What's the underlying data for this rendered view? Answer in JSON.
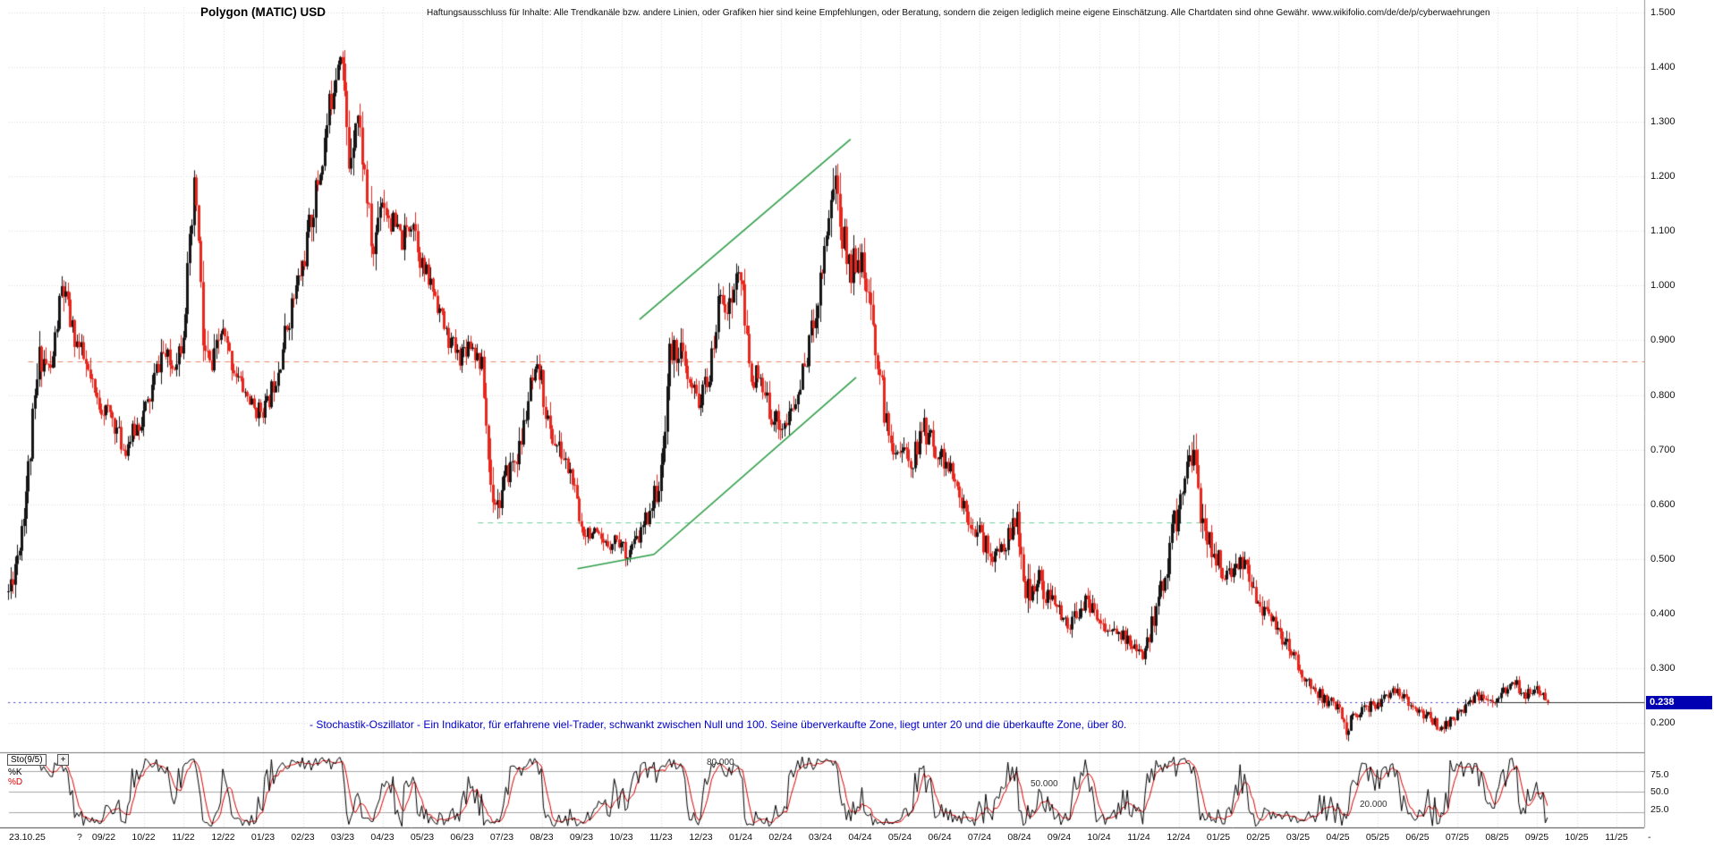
{
  "header": {
    "title": "Polygon (MATIC) USD",
    "disclaimer": "Haftungsausschluss für Inhalte: Alle Trendkanäle bzw. andere Linien, oder Grafiken hier sind keine Empfehlungen, oder Beratung, sondern die zeigen lediglich meine eigene Einschätzung. Alle Chartdaten sind ohne Gewähr.  www.wikifolio.com/de/de/p/cyberwaehrungen"
  },
  "annotations": {
    "stochastic_note": "- Stochastik-Oszillator - Ein Indikator, für erfahrene viel-Trader, schwankt zwischen Null und 100. Seine überverkaufte Zone, liegt unter 20 und die überkaufte Zone, über 80.",
    "note_color": "#0000cc"
  },
  "price_axis": {
    "current_price": "0.238",
    "badge_color": "#0000b2"
  },
  "time_axis": {
    "date_stamp": "23.10.25",
    "marker": "?",
    "suffix": "-"
  },
  "oscillator": {
    "indicator_label": "Sto(9/5)",
    "add_button": "+",
    "k_label": "%K",
    "d_label": "%D",
    "k_color": "#000000",
    "d_color": "#dd0000",
    "level_labels": {
      "upper": "80.000",
      "middle": "50.000",
      "lower": "20.000"
    },
    "right_ticks": [
      "75.0",
      "50.0",
      "25.0"
    ]
  },
  "chart_data": {
    "type": "candlestick",
    "title": "Polygon (MATIC) USD",
    "legend_position": "none",
    "grid": true,
    "x_axis": {
      "unit": "month",
      "labels": [
        "09/22",
        "10/22",
        "11/22",
        "12/22",
        "01/23",
        "02/23",
        "03/23",
        "04/23",
        "05/23",
        "06/23",
        "07/23",
        "08/23",
        "09/23",
        "10/23",
        "11/23",
        "12/23",
        "01/24",
        "02/24",
        "03/24",
        "04/24",
        "05/24",
        "06/24",
        "07/24",
        "08/24",
        "09/24",
        "10/24",
        "11/24",
        "12/24",
        "01/25",
        "02/25",
        "03/25",
        "04/25",
        "05/25",
        "06/25",
        "07/25",
        "08/25",
        "09/25",
        "10/25",
        "11/25"
      ],
      "start_month": -2.4,
      "end_month": 36.3,
      "right_edge_month": 38.7
    },
    "y_axis": {
      "ticks": [
        "1.500",
        "1.400",
        "1.300",
        "1.200",
        "1.100",
        "1.000",
        "0.900",
        "0.800",
        "0.700",
        "0.600",
        "0.500",
        "0.400",
        "0.300",
        "0.200"
      ],
      "gridlines": [
        0.2,
        0.3,
        0.4,
        0.5,
        0.6,
        0.7,
        0.8,
        0.9,
        1.0,
        1.1,
        1.2,
        1.3,
        1.4,
        1.5
      ],
      "range": [
        0.15,
        1.52
      ]
    },
    "last_price": 0.238,
    "colors": {
      "up": "#151515",
      "down": "#e8261d",
      "grid": "#dadada"
    },
    "seed": 11,
    "candles_per_month": 18,
    "price_path": [
      [
        -2.4,
        0.44,
        0.05
      ],
      [
        -2.15,
        0.52,
        0.06
      ],
      [
        -1.9,
        0.66,
        0.07
      ],
      [
        -1.6,
        0.88,
        0.07
      ],
      [
        -1.35,
        0.84,
        0.05
      ],
      [
        -1.05,
        1.0,
        0.06
      ],
      [
        -0.8,
        0.92,
        0.05
      ],
      [
        -0.5,
        0.86,
        0.05
      ],
      [
        -0.2,
        0.79,
        0.04
      ],
      [
        0.2,
        0.76,
        0.04
      ],
      [
        0.5,
        0.7,
        0.04
      ],
      [
        0.8,
        0.74,
        0.04
      ],
      [
        1.1,
        0.78,
        0.05
      ],
      [
        1.45,
        0.88,
        0.05
      ],
      [
        1.7,
        0.85,
        0.04
      ],
      [
        1.95,
        0.9,
        0.05
      ],
      [
        2.15,
        1.05,
        0.08
      ],
      [
        2.3,
        1.19,
        0.09
      ],
      [
        2.5,
        0.88,
        0.1
      ],
      [
        2.7,
        0.84,
        0.06
      ],
      [
        2.95,
        0.92,
        0.05
      ],
      [
        3.2,
        0.86,
        0.04
      ],
      [
        3.5,
        0.81,
        0.03
      ],
      [
        3.8,
        0.77,
        0.03
      ],
      [
        4.1,
        0.78,
        0.04
      ],
      [
        4.4,
        0.86,
        0.05
      ],
      [
        4.7,
        0.96,
        0.05
      ],
      [
        5.0,
        1.04,
        0.06
      ],
      [
        5.25,
        1.14,
        0.06
      ],
      [
        5.5,
        1.24,
        0.07
      ],
      [
        5.75,
        1.37,
        0.07
      ],
      [
        5.95,
        1.45,
        0.06
      ],
      [
        6.15,
        1.22,
        0.08
      ],
      [
        6.35,
        1.33,
        0.07
      ],
      [
        6.55,
        1.2,
        0.06
      ],
      [
        6.75,
        1.05,
        0.07
      ],
      [
        6.95,
        1.17,
        0.06
      ],
      [
        7.2,
        1.12,
        0.05
      ],
      [
        7.5,
        1.08,
        0.05
      ],
      [
        7.75,
        1.13,
        0.05
      ],
      [
        8.0,
        1.03,
        0.05
      ],
      [
        8.3,
        0.99,
        0.04
      ],
      [
        8.6,
        0.91,
        0.04
      ],
      [
        8.9,
        0.87,
        0.04
      ],
      [
        9.2,
        0.9,
        0.04
      ],
      [
        9.5,
        0.85,
        0.04
      ],
      [
        9.7,
        0.64,
        0.08
      ],
      [
        9.9,
        0.6,
        0.05
      ],
      [
        10.15,
        0.66,
        0.05
      ],
      [
        10.45,
        0.7,
        0.05
      ],
      [
        10.7,
        0.81,
        0.05
      ],
      [
        10.95,
        0.84,
        0.05
      ],
      [
        11.2,
        0.73,
        0.05
      ],
      [
        11.5,
        0.69,
        0.04
      ],
      [
        11.75,
        0.65,
        0.04
      ],
      [
        11.95,
        0.56,
        0.05
      ],
      [
        12.25,
        0.55,
        0.03
      ],
      [
        12.55,
        0.52,
        0.03
      ],
      [
        12.85,
        0.54,
        0.03
      ],
      [
        13.15,
        0.51,
        0.03
      ],
      [
        13.45,
        0.54,
        0.03
      ],
      [
        13.75,
        0.6,
        0.04
      ],
      [
        14.0,
        0.65,
        0.05
      ],
      [
        14.2,
        0.87,
        0.07
      ],
      [
        14.45,
        0.89,
        0.06
      ],
      [
        14.7,
        0.81,
        0.05
      ],
      [
        15.0,
        0.79,
        0.05
      ],
      [
        15.25,
        0.85,
        0.05
      ],
      [
        15.5,
        1.0,
        0.06
      ],
      [
        15.7,
        0.95,
        0.06
      ],
      [
        15.95,
        1.04,
        0.07
      ],
      [
        16.2,
        0.86,
        0.07
      ],
      [
        16.5,
        0.81,
        0.05
      ],
      [
        16.8,
        0.76,
        0.04
      ],
      [
        17.1,
        0.74,
        0.04
      ],
      [
        17.4,
        0.79,
        0.05
      ],
      [
        17.7,
        0.89,
        0.05
      ],
      [
        17.95,
        0.99,
        0.06
      ],
      [
        18.15,
        1.1,
        0.07
      ],
      [
        18.35,
        1.21,
        0.08
      ],
      [
        18.55,
        1.09,
        0.08
      ],
      [
        18.75,
        1.03,
        0.07
      ],
      [
        18.95,
        1.07,
        0.06
      ],
      [
        19.2,
        0.97,
        0.06
      ],
      [
        19.45,
        0.86,
        0.06
      ],
      [
        19.7,
        0.72,
        0.05
      ],
      [
        20.0,
        0.7,
        0.04
      ],
      [
        20.3,
        0.68,
        0.04
      ],
      [
        20.6,
        0.74,
        0.05
      ],
      [
        20.9,
        0.7,
        0.04
      ],
      [
        21.2,
        0.67,
        0.04
      ],
      [
        21.5,
        0.61,
        0.04
      ],
      [
        21.8,
        0.57,
        0.04
      ],
      [
        22.1,
        0.53,
        0.04
      ],
      [
        22.4,
        0.5,
        0.04
      ],
      [
        22.7,
        0.54,
        0.04
      ],
      [
        22.95,
        0.57,
        0.04
      ],
      [
        23.15,
        0.42,
        0.08
      ],
      [
        23.4,
        0.47,
        0.05
      ],
      [
        23.7,
        0.43,
        0.04
      ],
      [
        24.0,
        0.4,
        0.03
      ],
      [
        24.3,
        0.38,
        0.03
      ],
      [
        24.6,
        0.42,
        0.04
      ],
      [
        24.9,
        0.4,
        0.03
      ],
      [
        25.2,
        0.37,
        0.03
      ],
      [
        25.5,
        0.36,
        0.03
      ],
      [
        25.85,
        0.34,
        0.03
      ],
      [
        26.1,
        0.31,
        0.03
      ],
      [
        26.35,
        0.39,
        0.06
      ],
      [
        26.6,
        0.46,
        0.06
      ],
      [
        26.85,
        0.55,
        0.06
      ],
      [
        27.1,
        0.63,
        0.06
      ],
      [
        27.3,
        0.71,
        0.06
      ],
      [
        27.55,
        0.59,
        0.06
      ],
      [
        27.8,
        0.52,
        0.05
      ],
      [
        28.1,
        0.48,
        0.04
      ],
      [
        28.35,
        0.46,
        0.04
      ],
      [
        28.6,
        0.5,
        0.04
      ],
      [
        28.9,
        0.44,
        0.04
      ],
      [
        29.2,
        0.4,
        0.04
      ],
      [
        29.5,
        0.36,
        0.04
      ],
      [
        29.8,
        0.33,
        0.03
      ],
      [
        30.1,
        0.29,
        0.03
      ],
      [
        30.4,
        0.26,
        0.03
      ],
      [
        30.7,
        0.24,
        0.02
      ],
      [
        31.0,
        0.23,
        0.02
      ],
      [
        31.2,
        0.19,
        0.03
      ],
      [
        31.5,
        0.22,
        0.02
      ],
      [
        31.8,
        0.23,
        0.02
      ],
      [
        32.1,
        0.24,
        0.02
      ],
      [
        32.4,
        0.26,
        0.02
      ],
      [
        32.7,
        0.24,
        0.02
      ],
      [
        33.0,
        0.22,
        0.02
      ],
      [
        33.3,
        0.21,
        0.02
      ],
      [
        33.6,
        0.19,
        0.02
      ],
      [
        33.9,
        0.21,
        0.02
      ],
      [
        34.2,
        0.23,
        0.02
      ],
      [
        34.5,
        0.25,
        0.02
      ],
      [
        34.8,
        0.24,
        0.02
      ],
      [
        35.1,
        0.25,
        0.02
      ],
      [
        35.4,
        0.28,
        0.02
      ],
      [
        35.65,
        0.25,
        0.02
      ],
      [
        35.95,
        0.26,
        0.02
      ],
      [
        36.3,
        0.238,
        0.015
      ]
    ],
    "overlay_lines": [
      {
        "name": "resistance-dashed",
        "price": 0.862,
        "from_month": -1.9,
        "to_month": 38.7,
        "color": "#f08868",
        "dash": [
          6,
          5
        ]
      },
      {
        "name": "support-dashed",
        "price": 0.566,
        "from_month": 9.4,
        "to_month": 27.6,
        "color": "#6fcf9a",
        "dash": [
          6,
          5
        ]
      },
      {
        "name": "current-price-dashed",
        "price": 0.238,
        "from_month": -2.4,
        "to_month": 38.7,
        "color": "#3333cc",
        "dash": [
          2,
          4
        ]
      },
      {
        "name": "last-price-line",
        "price": 0.238,
        "from_month": 34.9,
        "to_month": 38.7,
        "color": "#333333",
        "dash": []
      }
    ],
    "trend_lines": [
      {
        "name": "upper-channel",
        "color": "#2f9e49",
        "points": [
          [
            13.46,
            0.938
          ],
          [
            18.76,
            1.268
          ]
        ]
      },
      {
        "name": "lower-channel",
        "color": "#2f9e49",
        "points": [
          [
            11.9,
            0.482
          ],
          [
            13.82,
            0.508
          ],
          [
            18.9,
            0.832
          ]
        ]
      }
    ],
    "stochastic": {
      "k_period": 9,
      "d_period": 5,
      "levels": [
        80,
        50,
        20
      ]
    }
  }
}
